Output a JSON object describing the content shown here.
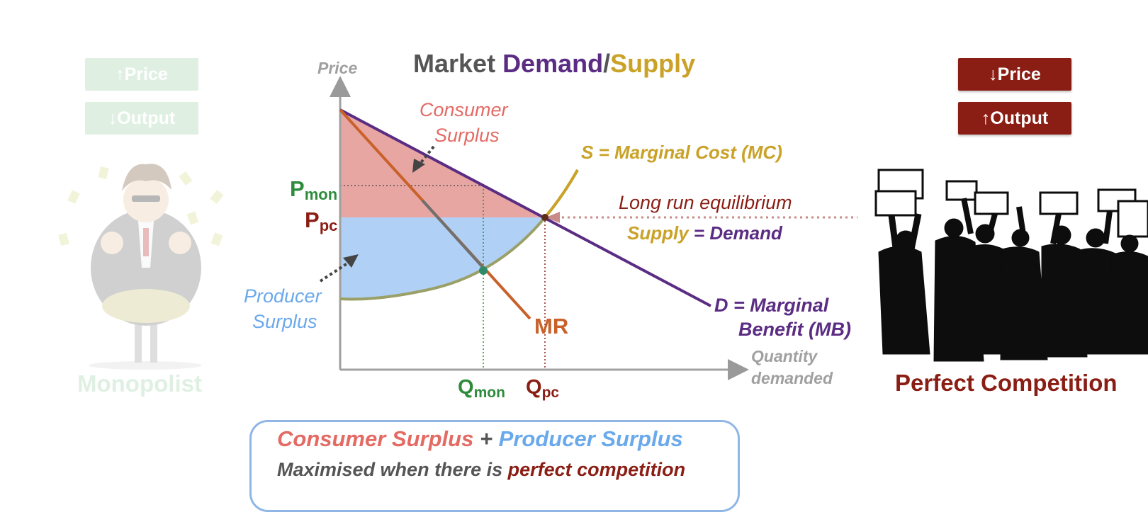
{
  "title": {
    "part1": "Market ",
    "part2": "Demand",
    "part3": "/",
    "part4": "Supply"
  },
  "axes": {
    "y_label": "Price",
    "x_label_line1": "Quantity",
    "x_label_line2": "demanded"
  },
  "labels": {
    "consumer_surplus_line1": "Consumer",
    "consumer_surplus_line2": "Surplus",
    "producer_surplus_line1": "Producer",
    "producer_surplus_line2": "Surplus",
    "supply": "S = Marginal Cost (MC)",
    "demand_line1": "D = Marginal",
    "demand_line2": "Benefit (MB)",
    "mr": "MR",
    "equilibrium_line1": "Long run equilibrium",
    "equilibrium_supply": "Supply",
    "equilibrium_eq": " = ",
    "equilibrium_demand": "Demand",
    "p_mon_main": "P",
    "p_mon_sub": "mon",
    "p_pc_main": "P",
    "p_pc_sub": "pc",
    "q_mon_main": "Q",
    "q_mon_sub": "mon",
    "q_pc_main": "Q",
    "q_pc_sub": "pc"
  },
  "left_panel": {
    "price_badge": "↑Price",
    "output_badge": "↓Output",
    "caption": "Monopolist"
  },
  "right_panel": {
    "price_badge": "↓Price",
    "output_badge": "↑Output",
    "caption": "Perfect Competition"
  },
  "summary": {
    "consumer": "Consumer Surplus",
    "plus": " + ",
    "producer": "Producer Surplus",
    "line2_prefix": "Maximised when there is ",
    "line2_emph": "perfect competition"
  },
  "colors": {
    "demand": "#5b2c83",
    "supply": "#c9a227",
    "mr": "#c8612a",
    "consumer_surplus": "#e46a64",
    "producer_surplus": "#6aa9ec",
    "monopoly_green": "#2e8b3c",
    "competition_red": "#8a1e14",
    "axis_gray": "#9a9a9a",
    "title_gray": "#555555"
  }
}
